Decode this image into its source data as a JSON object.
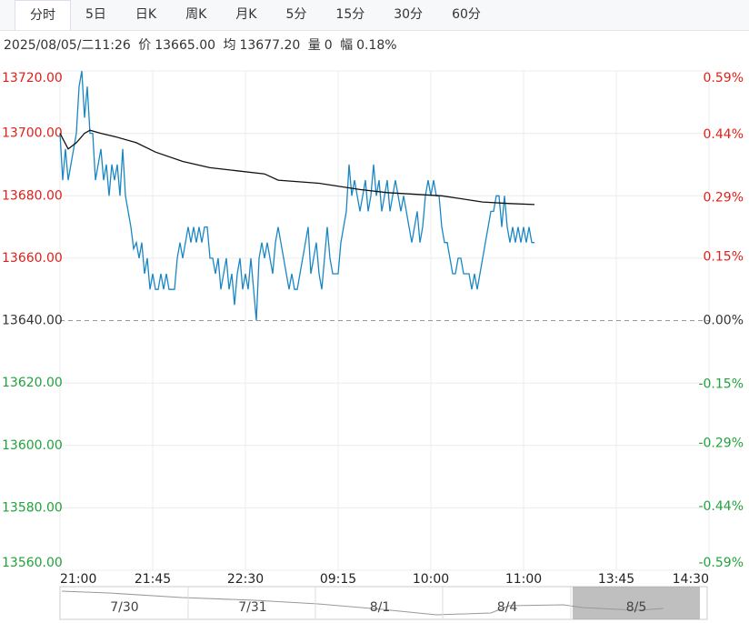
{
  "tabs": [
    "分时",
    "5日",
    "日K",
    "周K",
    "月K",
    "5分",
    "15分",
    "30分",
    "60分"
  ],
  "info": {
    "datetime": "2025/08/05/二11:26",
    "price_label": "价",
    "price": "13665.00",
    "avg_label": "均",
    "avg": "13677.20",
    "volume_label": "量",
    "volume": "0",
    "range_label": "幅",
    "range": "0.18%"
  },
  "navigator": {
    "labels": [
      "7/30",
      "7/31",
      "8/1",
      "8/4",
      "8/5"
    ]
  },
  "chart_data": {
    "type": "line",
    "ylim": [
      13560,
      13720
    ],
    "yticks": [
      {
        "value": 13720,
        "label": "13720.00"
      },
      {
        "value": 13700,
        "label": "13700.00"
      },
      {
        "value": 13680,
        "label": "13680.00"
      },
      {
        "value": 13660,
        "label": "13660.00"
      },
      {
        "value": 13640,
        "label": "13640.00"
      },
      {
        "value": 13620,
        "label": "13620.00"
      },
      {
        "value": 13600,
        "label": "13600.00"
      },
      {
        "value": 13580,
        "label": "13580.00"
      },
      {
        "value": 13560,
        "label": "13560.00"
      }
    ],
    "y2lim": [
      -0.59,
      0.59
    ],
    "y2ticks": [
      {
        "value": 0.59,
        "label": "0.59%"
      },
      {
        "value": 0.44,
        "label": "0.44%"
      },
      {
        "value": 0.29,
        "label": "0.29%"
      },
      {
        "value": 0.15,
        "label": "0.15%"
      },
      {
        "value": 0,
        "label": "0.00%"
      },
      {
        "value": -0.15,
        "label": "-0.15%"
      },
      {
        "value": -0.29,
        "label": "-0.29%"
      },
      {
        "value": -0.44,
        "label": "-0.44%"
      },
      {
        "value": -0.59,
        "label": "-0.59%"
      }
    ],
    "reference": 13640,
    "up_color": "#e0201b",
    "down_color": "#21a33b",
    "flat_color": "#333333",
    "xlim": [
      0,
      238
    ],
    "xticks": [
      {
        "value": 0,
        "label": "21:00"
      },
      {
        "value": 34,
        "label": "21:45"
      },
      {
        "value": 68,
        "label": "22:30"
      },
      {
        "value": 102,
        "label": "09:15"
      },
      {
        "value": 136,
        "label": "10:00"
      },
      {
        "value": 170,
        "label": "11:00"
      },
      {
        "value": 204,
        "label": "13:45"
      },
      {
        "value": 238,
        "label": "14:30"
      }
    ],
    "series": [
      {
        "name": "价",
        "color": "#1a87c4",
        "values": [
          13700,
          13685,
          13695,
          13685,
          13690,
          13695,
          13700,
          13715,
          13720,
          13705,
          13715,
          13700,
          13700,
          13685,
          13690,
          13695,
          13685,
          13690,
          13680,
          13690,
          13685,
          13690,
          13680,
          13695,
          13680,
          13675,
          13670,
          13663,
          13665,
          13660,
          13665,
          13655,
          13660,
          13650,
          13655,
          13650,
          13650,
          13655,
          13650,
          13655,
          13650,
          13650,
          13650,
          13660,
          13665,
          13660,
          13665,
          13670,
          13665,
          13670,
          13665,
          13670,
          13665,
          13670,
          13670,
          13660,
          13660,
          13655,
          13660,
          13650,
          13655,
          13660,
          13650,
          13655,
          13645,
          13655,
          13660,
          13650,
          13655,
          13650,
          13660,
          13650,
          13640,
          13660,
          13665,
          13660,
          13665,
          13660,
          13655,
          13665,
          13670,
          13665,
          13660,
          13655,
          13650,
          13655,
          13650,
          13650,
          13655,
          13660,
          13665,
          13670,
          13655,
          13660,
          13665,
          13655,
          13650,
          13660,
          13670,
          13660,
          13655,
          13655,
          13655,
          13665,
          13670,
          13675,
          13690,
          13680,
          13685,
          13680,
          13675,
          13680,
          13685,
          13675,
          13680,
          13690,
          13680,
          13685,
          13675,
          13680,
          13685,
          13675,
          13680,
          13685,
          13680,
          13675,
          13680,
          13675,
          13670,
          13665,
          13670,
          13675,
          13665,
          13670,
          13680,
          13685,
          13680,
          13685,
          13680,
          13680,
          13670,
          13665,
          13665,
          13660,
          13655,
          13655,
          13660,
          13660,
          13655,
          13655,
          13655,
          13650,
          13655,
          13650,
          13655,
          13660,
          13665,
          13670,
          13675,
          13675,
          13680,
          13680,
          13670,
          13680,
          13670,
          13665,
          13670,
          13665,
          13670,
          13665,
          13670,
          13665,
          13670,
          13665,
          13665
        ]
      },
      {
        "name": "均",
        "color": "#111111",
        "x": [
          0,
          3,
          6,
          9,
          11,
          15,
          20,
          28,
          35,
          45,
          55,
          65,
          75,
          80,
          95,
          110,
          120,
          140,
          155,
          165,
          174
        ],
        "values": [
          13700,
          13695,
          13697,
          13700,
          13701,
          13700,
          13699,
          13697,
          13694,
          13691,
          13689,
          13688,
          13687,
          13685,
          13684,
          13682,
          13681,
          13680,
          13678,
          13677.5,
          13677.2
        ]
      }
    ]
  }
}
